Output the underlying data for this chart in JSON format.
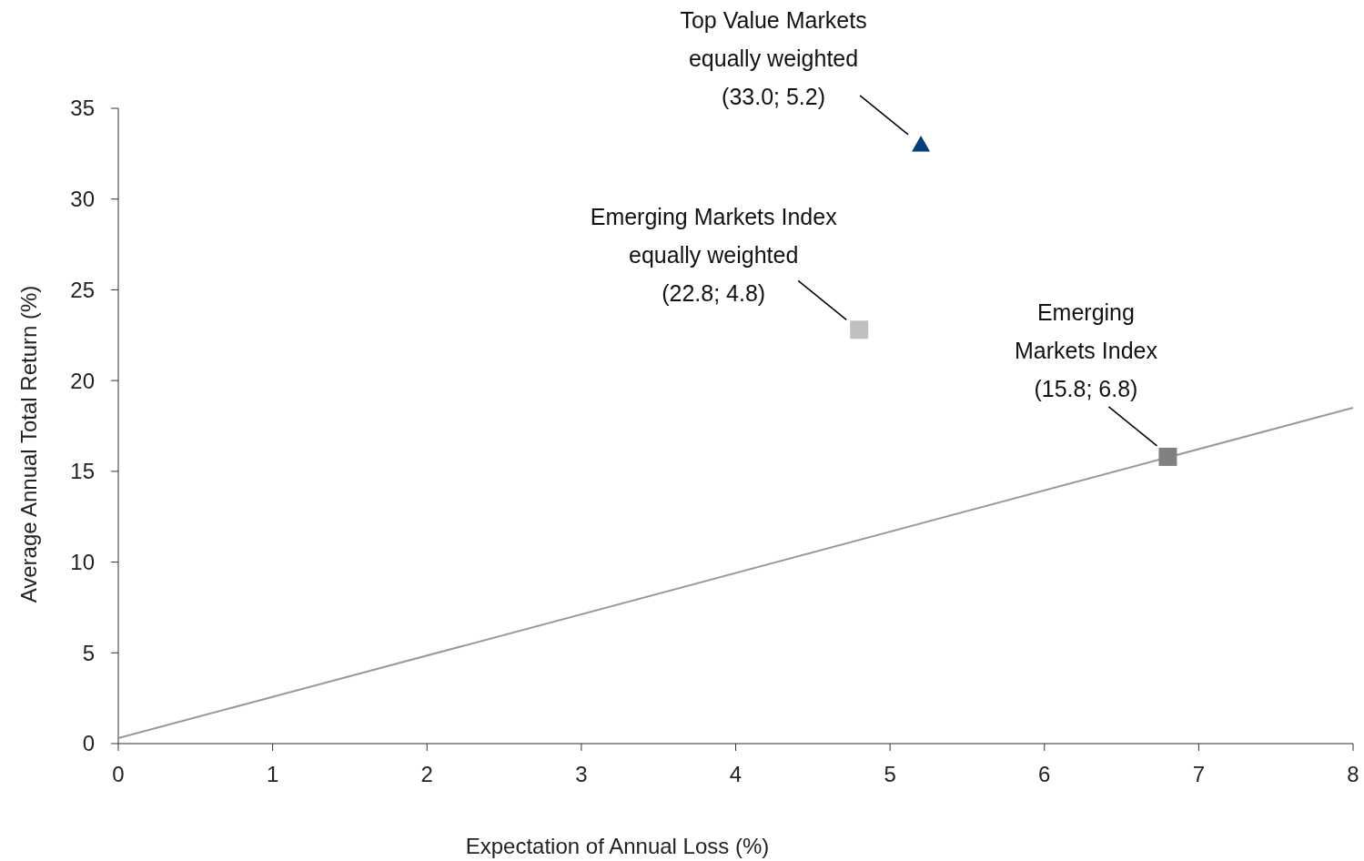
{
  "chart_data": {
    "type": "scatter",
    "xlabel": "Expectation of Annual Loss (%)",
    "ylabel": "Average Annual Total Return (%)",
    "xlim": [
      0,
      8
    ],
    "xticks": [
      0,
      1,
      2,
      3,
      4,
      5,
      6,
      7,
      8
    ],
    "ylim": [
      0,
      35
    ],
    "yticks": [
      0,
      5,
      10,
      15,
      20,
      25,
      30,
      35
    ],
    "grid": false,
    "series": [
      {
        "type": "line",
        "color": "#999999",
        "x": [
          0,
          8
        ],
        "values": [
          0.3,
          18.5
        ],
        "marker": "none"
      },
      {
        "color": "#003f7f",
        "x": [
          5.2
        ],
        "values": [
          33.0
        ],
        "marker": "triangle"
      },
      {
        "color": "#c0c0c0",
        "x": [
          4.8
        ],
        "values": [
          22.8
        ],
        "marker": "square"
      },
      {
        "color": "#808080",
        "x": [
          6.8
        ],
        "values": [
          15.8
        ],
        "marker": "square"
      }
    ],
    "annotations": [
      {
        "text": "Top Value Markets\nequally weighted\n(33.0; 5.2)",
        "x": 5.2,
        "y": 33.0
      },
      {
        "text": "Emerging Markets Index\nequally weighted\n(22.8; 4.8)",
        "x": 4.8,
        "y": 22.8
      },
      {
        "text": "Emerging\nMarkets Index\n(15.8; 6.8)",
        "x": 6.8,
        "y": 15.8
      }
    ]
  }
}
